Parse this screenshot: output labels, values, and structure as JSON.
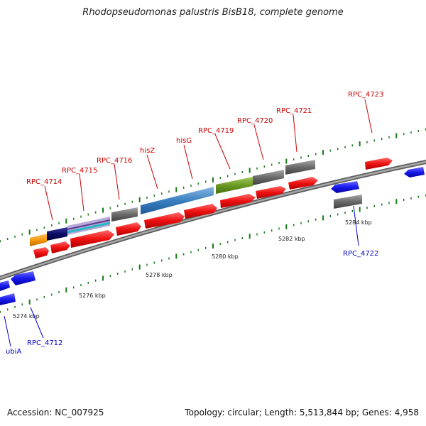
{
  "title": "Rhodopseudomonas palustris BisB18, complete genome",
  "footer": {
    "accession": "Accession: NC_007925",
    "summary": "Topology: circular; Length: 5,513,844 bp; Genes: 4,958"
  },
  "scale_labels": [
    "5274 kbp",
    "5276 kbp",
    "5278 kbp",
    "5280 kbp",
    "5282 kbp",
    "5284 kbp"
  ],
  "gene_labels_forward": [
    "RPC_4714",
    "RPC_4715",
    "RPC_4716",
    "hisZ",
    "hisG",
    "RPC_4719",
    "RPC_4720",
    "RPC_4721",
    "RPC_4723"
  ],
  "gene_labels_reverse": [
    "ubiA",
    "RPC_4712",
    "RPC_4722"
  ],
  "colors": {
    "forward_gene": "#ee1111",
    "reverse_gene": "#1a1aee",
    "forward_label": "#cc0000",
    "reverse_label": "#0000cc",
    "backbone": "#8a8a8a",
    "tick": "#1a7a1a",
    "orange_feature": "#f59a10",
    "navy_feature": "#0b0b66",
    "blue_feature": "#3a7fc0",
    "green_feature": "#6a9a22",
    "grey_feature": "#6a6a6a"
  }
}
